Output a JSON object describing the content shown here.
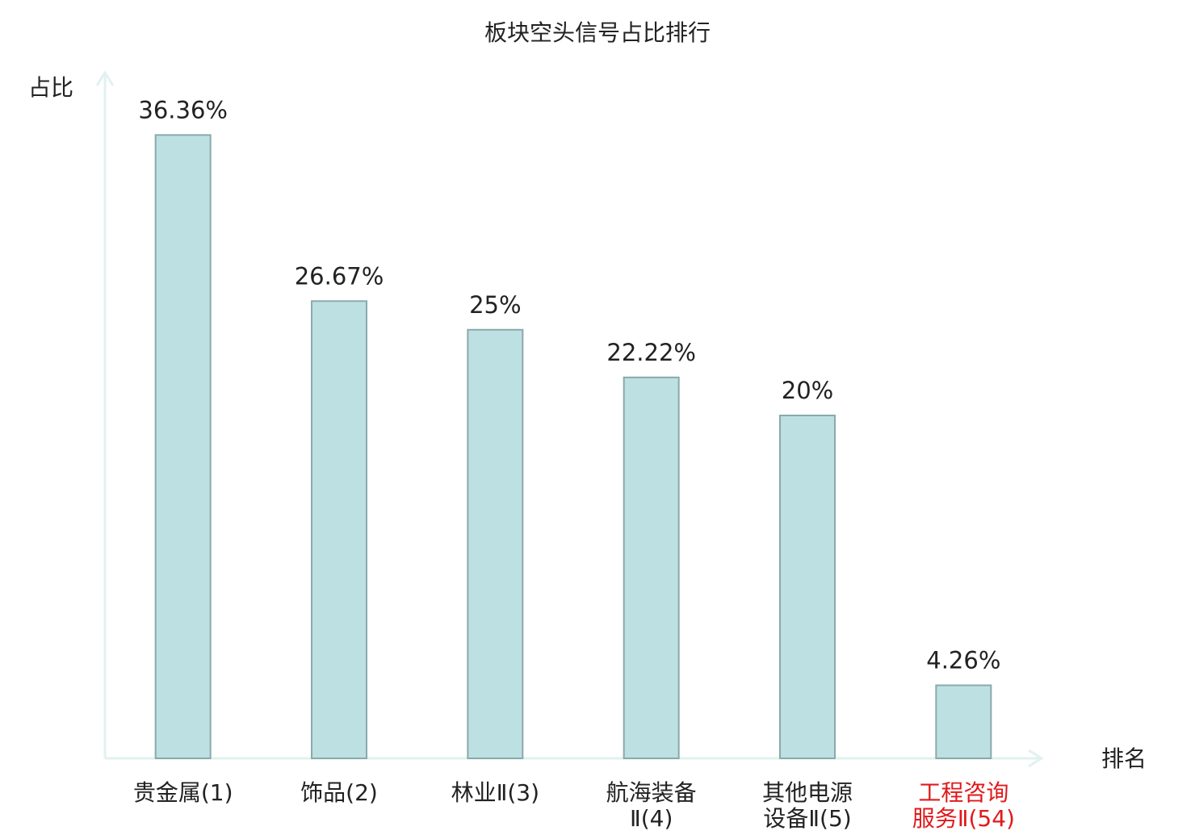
{
  "chart_data": {
    "type": "bar",
    "title": "板块空头信号占比排行",
    "y_label": "占比",
    "x_label": "排名",
    "categories": [
      "贵金属(1)",
      "饰品(2)",
      "林业Ⅱ(3)",
      "航海装备Ⅱ(4)",
      "其他电源设备Ⅱ(5)",
      "工程咨询服务Ⅱ(54)"
    ],
    "label_colors": [
      "#222222",
      "#222222",
      "#222222",
      "#222222",
      "#222222",
      "#e0191b"
    ],
    "values": [
      36.36,
      26.67,
      25,
      22.22,
      20,
      4.26
    ],
    "value_labels": [
      "36.36%",
      "26.67%",
      "25%",
      "22.22%",
      "20%",
      "4.26%"
    ],
    "color": "#bde0e3",
    "edge_color": "#8aa9ab",
    "axis_color": "#e0f2ef",
    "ylim": [
      0,
      40
    ]
  }
}
